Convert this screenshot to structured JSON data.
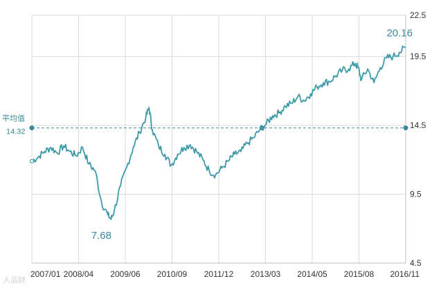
{
  "chart_data": {
    "type": "line",
    "xlim": [
      "2007-01",
      "2016-11"
    ],
    "ylim": [
      4.5,
      22.5
    ],
    "x_tick_labels": [
      "2007/01",
      "2008/04",
      "2009/06",
      "2010/09",
      "2011/12",
      "2013/03",
      "2014/05",
      "2015/08",
      "2016/11"
    ],
    "y_ticks": [
      4.5,
      9.5,
      14.5,
      19.5,
      22.5
    ],
    "y_tick_labels": [
      "4.5",
      "9.5",
      "14.5",
      "19.5",
      "22.5"
    ],
    "grid": true,
    "series": [
      {
        "color": "#3b99a8",
        "points": [
          [
            "2007-01",
            11.9
          ],
          [
            "2007-03",
            12.2
          ],
          [
            "2007-05",
            12.6
          ],
          [
            "2007-07",
            12.9
          ],
          [
            "2007-09",
            12.5
          ],
          [
            "2007-11",
            13.0
          ],
          [
            "2008-01",
            12.6
          ],
          [
            "2008-03",
            12.3
          ],
          [
            "2008-05",
            12.9
          ],
          [
            "2008-07",
            11.7
          ],
          [
            "2008-09",
            11.2
          ],
          [
            "2008-11",
            8.9
          ],
          [
            "2009-01",
            8.0
          ],
          [
            "2009-02",
            7.68
          ],
          [
            "2009-03",
            8.3
          ],
          [
            "2009-05",
            10.1
          ],
          [
            "2009-07",
            11.5
          ],
          [
            "2009-09",
            12.9
          ],
          [
            "2009-11",
            14.0
          ],
          [
            "2010-01",
            15.1
          ],
          [
            "2010-02",
            15.8
          ],
          [
            "2010-03",
            14.2
          ],
          [
            "2010-05",
            13.0
          ],
          [
            "2010-07",
            12.4
          ],
          [
            "2010-09",
            11.6
          ],
          [
            "2010-11",
            12.4
          ],
          [
            "2011-01",
            12.9
          ],
          [
            "2011-03",
            13.1
          ],
          [
            "2011-05",
            12.6
          ],
          [
            "2011-07",
            12.0
          ],
          [
            "2011-09",
            11.2
          ],
          [
            "2011-11",
            10.9
          ],
          [
            "2012-01",
            11.4
          ],
          [
            "2012-03",
            11.9
          ],
          [
            "2012-05",
            12.4
          ],
          [
            "2012-07",
            12.6
          ],
          [
            "2012-09",
            13.2
          ],
          [
            "2012-11",
            13.6
          ],
          [
            "2013-01",
            14.2
          ],
          [
            "2013-03",
            14.6
          ],
          [
            "2013-05",
            15.2
          ],
          [
            "2013-07",
            15.4
          ],
          [
            "2013-09",
            15.9
          ],
          [
            "2013-11",
            16.1
          ],
          [
            "2014-01",
            16.6
          ],
          [
            "2014-03",
            16.3
          ],
          [
            "2014-05",
            16.8
          ],
          [
            "2014-07",
            17.3
          ],
          [
            "2014-09",
            17.6
          ],
          [
            "2014-11",
            17.7
          ],
          [
            "2015-01",
            18.1
          ],
          [
            "2015-03",
            18.5
          ],
          [
            "2015-05",
            18.6
          ],
          [
            "2015-07",
            19.0
          ],
          [
            "2015-08",
            18.7
          ],
          [
            "2015-09",
            17.8
          ],
          [
            "2015-11",
            18.6
          ],
          [
            "2016-01",
            17.6
          ],
          [
            "2016-03",
            18.7
          ],
          [
            "2016-05",
            19.4
          ],
          [
            "2016-07",
            19.5
          ],
          [
            "2016-09",
            19.8
          ],
          [
            "2016-11",
            20.16
          ]
        ]
      }
    ],
    "average": {
      "label": "平均值",
      "value": 14.32,
      "value_label": "14.32",
      "color": "#3a8a9a"
    },
    "annotations": [
      {
        "text": "7.68",
        "x": "2009-02",
        "y": 7.68
      },
      {
        "text": "20.16",
        "x": "2016-11",
        "y": 20.16
      }
    ],
    "watermark": "人品财"
  }
}
